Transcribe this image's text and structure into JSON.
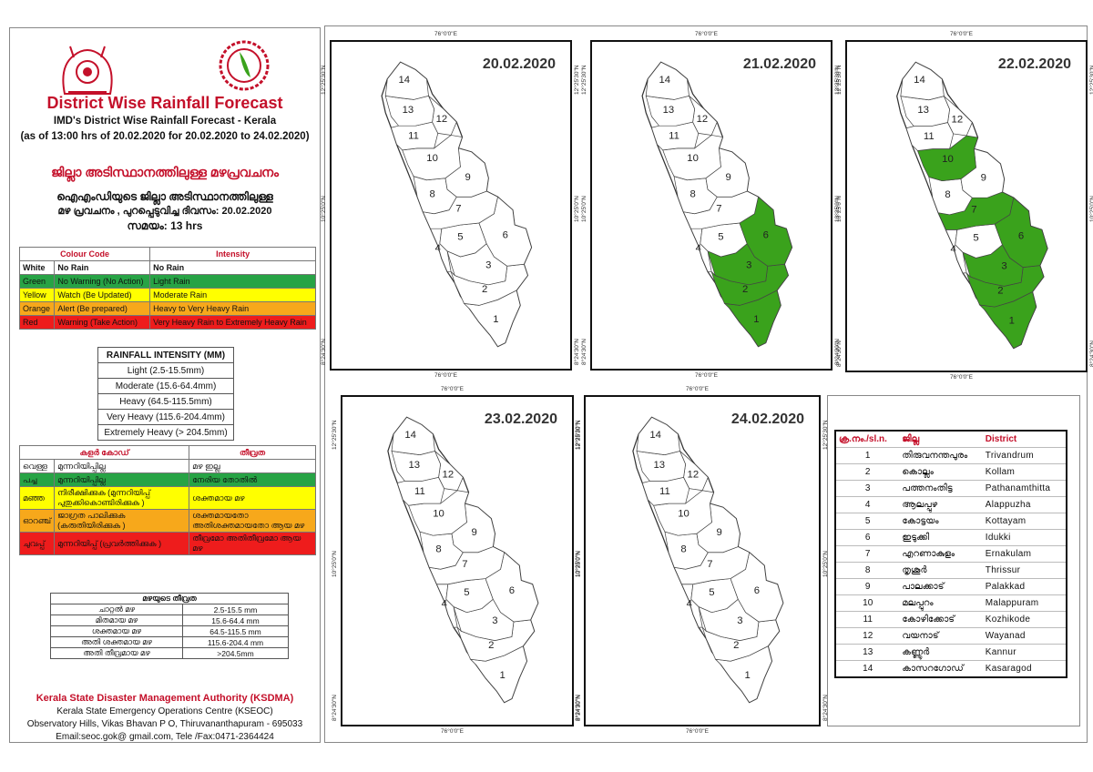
{
  "header": {
    "title": "District Wise Rainfall Forecast",
    "subtitle1": "IMD's District Wise Rainfall Forecast - Kerala",
    "subtitle2": "(as of 13:00 hrs of 20.02.2020  for 20.02.2020  to 24.02.2020)",
    "ml_title": "ജില്ലാ അടിസ്ഥാനത്തിലുള്ള മഴപ്രവചനം",
    "ml_sub1": "ഐഎംഡിയുടെ ജില്ലാ  അടിസ്ഥാനത്തിലുള്ള",
    "ml_sub2": "മഴ പ്രവചനം , പുറപ്പെടുവിച്ച   ദിവസം: 20.02.2020",
    "ml_sub3": "സമയം: 13 hrs"
  },
  "colour_code_table": {
    "head_code": "Colour Code",
    "head_intensity": "Intensity",
    "rows": [
      {
        "colour": "White",
        "code": "No Rain",
        "intensity": "No Rain"
      },
      {
        "colour": "Green",
        "code": "No Warning (No Action)",
        "intensity": "Light Rain"
      },
      {
        "colour": "Yellow",
        "code": "Watch (Be Updated)",
        "intensity": "Moderate Rain"
      },
      {
        "colour": "Orange",
        "code": "Alert (Be prepared)",
        "intensity": "Heavy to Very Heavy Rain"
      },
      {
        "colour": "Red",
        "code": "Warning (Take Action)",
        "intensity": "Very Heavy Rain to Extremely Heavy Rain"
      }
    ]
  },
  "rainfall_intensity": {
    "title": "RAINFALL INTENSITY (MM)",
    "rows": [
      "Light (2.5-15.5mm)",
      "Moderate (15.6-64.4mm)",
      "Heavy (64.5-115.5mm)",
      "Very Heavy (115.6-204.4mm)",
      "Extremely Heavy (> 204.5mm)"
    ]
  },
  "ml_colour_table": {
    "head_code": "കളർ കോഡ്",
    "head_intensity": "തീവ്രത",
    "rows": [
      {
        "colour": "വെള്ള",
        "code": "മുന്നറിയിപ്പില്ല",
        "intensity": "മഴ ഇല്ല"
      },
      {
        "colour": "പച്ച",
        "code": "മുന്നറിയിപ്പില്ല",
        "intensity": "നേരിയ തോതിൽ"
      },
      {
        "colour": "മഞ്ഞ",
        "code": "നിരീക്ഷിക്കുക (മുന്നറിയിപ്പ് പുതുക്കികൊണ്ടിരിക്കുക )",
        "intensity": "ശക്തമായ മഴ"
      },
      {
        "colour": "ഓറഞ്ച്",
        "code": "ജാഗ്രത പാലിക്കുക (കരുതിയിരിക്കുക )",
        "intensity": "ശക്തമായതോ അതിശക്തമായതോ ആയ മഴ"
      },
      {
        "colour": "ചുവപ്പ്",
        "code": "മുന്നറിയിപ്പ് (പ്രവർത്തിക്കുക )",
        "intensity": "തീവ്രമോ അതിതീവ്രമോ ആയ മഴ"
      }
    ]
  },
  "ml_intensity": {
    "title": "മഴയുടെ തീവ്രത",
    "rows": [
      {
        "label": "ചാറ്റൽ മഴ",
        "value": "2.5-15.5 mm"
      },
      {
        "label": "മിതമായ മഴ",
        "value": "15.6-64.4 mm"
      },
      {
        "label": "ശക്തമായ മഴ",
        "value": "64.5-115.5 mm"
      },
      {
        "label": "അതി ശക്തമായ മഴ",
        "value": "115.6-204.4 mm"
      },
      {
        "label": "അതി തീവ്രമായ മഴ",
        "value": ">204.5mm"
      }
    ]
  },
  "footer": {
    "org": "Kerala State Disaster Management Authority (KSDMA)",
    "line1": "Kerala State Emergency Operations Centre (KSEOC)",
    "line2": "Observatory Hills, Vikas Bhavan P O, Thiruvananthapuram - 695033",
    "line3": "Email:seoc.gok@ gmail.com, Tele /Fax:0471-2364424"
  },
  "coords": {
    "lon": "76°0'0\"E",
    "lat_top": "12°25'30\"N",
    "lat_mid": "10°25'0\"N",
    "lat_bot": "8°24'30\"N"
  },
  "maps": [
    {
      "date": "20.02.2020",
      "green_districts": []
    },
    {
      "date": "21.02.2020",
      "green_districts": [
        1,
        2,
        3,
        6
      ]
    },
    {
      "date": "22.02.2020",
      "green_districts": [
        1,
        2,
        3,
        6,
        7,
        10
      ]
    },
    {
      "date": "23.02.2020",
      "green_districts": []
    },
    {
      "date": "24.02.2020",
      "green_districts": []
    }
  ],
  "district_table": {
    "head_no": "ക്ര.നം./sl.n.",
    "head_ml": "ജില്ല",
    "head_en": "District",
    "rows": [
      {
        "no": "1",
        "ml": "തിരുവനന്തപുരം",
        "en": "Trivandrum"
      },
      {
        "no": "2",
        "ml": "കൊല്ലം",
        "en": "Kollam"
      },
      {
        "no": "3",
        "ml": "പത്തനംതിട്ട",
        "en": "Pathanamthitta"
      },
      {
        "no": "4",
        "ml": "ആലപ്പുഴ",
        "en": "Alappuzha"
      },
      {
        "no": "5",
        "ml": "കോട്ടയം",
        "en": "Kottayam"
      },
      {
        "no": "6",
        "ml": "ഇടുക്കി",
        "en": "Idukki"
      },
      {
        "no": "7",
        "ml": "എറണാകുളം",
        "en": "Ernakulam"
      },
      {
        "no": "8",
        "ml": "തൃശൂർ",
        "en": "Thrissur"
      },
      {
        "no": "9",
        "ml": "പാലക്കാട്",
        "en": "Palakkad"
      },
      {
        "no": "10",
        "ml": "മലപ്പുറം",
        "en": "Malappuram"
      },
      {
        "no": "11",
        "ml": "കോഴിക്കോട്",
        "en": "Kozhikode"
      },
      {
        "no": "12",
        "ml": "വയനാട്",
        "en": "Wayanad"
      },
      {
        "no": "13",
        "ml": "കണ്ണൂർ",
        "en": "Kannur"
      },
      {
        "no": "14",
        "ml": "കാസറഗോഡ്",
        "en": "Kasaragod"
      }
    ]
  },
  "colors": {
    "green": "#3aa21c",
    "red_title": "#c4102a"
  }
}
